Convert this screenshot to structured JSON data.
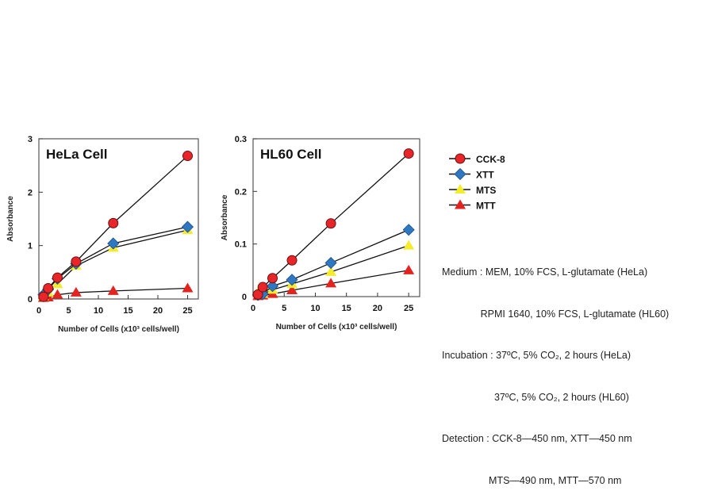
{
  "legend": [
    {
      "name": "CCK-8",
      "marker": "circle",
      "color": "#e8262a"
    },
    {
      "name": "XTT",
      "marker": "diamond",
      "color": "#2f77c0"
    },
    {
      "name": "MTS",
      "marker": "triangle",
      "color": "#f4ec2a"
    },
    {
      "name": "MTT",
      "marker": "triangle",
      "color": "#e3231f"
    }
  ],
  "notes": [
    "Medium : MEM, 10% FCS, L-glutamate (HeLa)",
    "              RPMI 1640, 10% FCS, L-glutamate (HL60)",
    "Incubation : 37ºC, 5% CO₂, 2 hours (HeLa)",
    "                   37ºC, 5% CO₂, 2 hours (HL60)",
    "Detection : CCK-8—450 nm, XTT—450 nm",
    "                 MTS—490 nm, MTT—570 nm"
  ],
  "chart_data": [
    {
      "type": "line",
      "title": "HeLa Cell",
      "xlabel": "Number of Cells (x10³ cells/well)",
      "ylabel": "Absorbance",
      "xlim": [
        0,
        26
      ],
      "ylim": [
        0,
        3
      ],
      "xticks": [
        0,
        5,
        10,
        15,
        20,
        25
      ],
      "yticks": [
        0,
        1,
        2,
        3
      ],
      "x": [
        0.78,
        1.56,
        3.125,
        6.25,
        12.5,
        25
      ],
      "series": [
        {
          "name": "CCK-8",
          "values": [
            0.04,
            0.2,
            0.4,
            0.7,
            1.42,
            2.68
          ]
        },
        {
          "name": "XTT",
          "values": [
            0.08,
            0.18,
            0.38,
            0.66,
            1.04,
            1.35
          ]
        },
        {
          "name": "MTS",
          "values": [
            0.05,
            0.12,
            0.28,
            0.62,
            0.96,
            1.29
          ]
        },
        {
          "name": "MTT",
          "values": [
            0.02,
            0.03,
            0.08,
            0.12,
            0.15,
            0.2
          ]
        }
      ]
    },
    {
      "type": "line",
      "title": "HL60 Cell",
      "xlabel": "Number of Cells (x10³ cells/well)",
      "ylabel": "Absorbance",
      "xlim": [
        0,
        26
      ],
      "ylim": [
        0,
        0.3
      ],
      "xticks": [
        0,
        5,
        10,
        15,
        20,
        25
      ],
      "yticks": [
        0,
        0.1,
        0.2,
        0.3
      ],
      "x": [
        0.78,
        1.56,
        3.125,
        6.25,
        12.5,
        25
      ],
      "series": [
        {
          "name": "CCK-8",
          "values": [
            0.004,
            0.018,
            0.035,
            0.069,
            0.139,
            0.272
          ]
        },
        {
          "name": "XTT",
          "values": [
            0.003,
            0.005,
            0.02,
            0.032,
            0.064,
            0.127
          ]
        },
        {
          "name": "MTS",
          "values": [
            0.008,
            0.005,
            0.013,
            0.024,
            0.047,
            0.097
          ]
        },
        {
          "name": "MTT",
          "values": [
            0.001,
            0.002,
            0.005,
            0.012,
            0.025,
            0.05
          ]
        }
      ]
    }
  ]
}
